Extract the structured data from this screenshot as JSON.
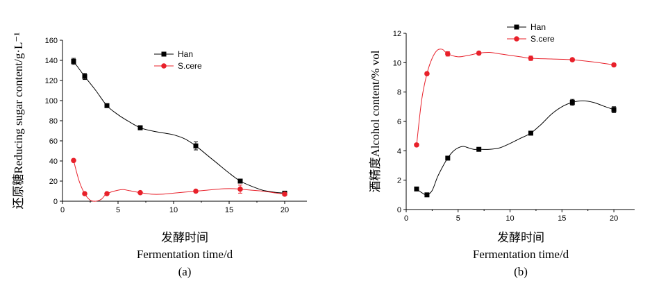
{
  "chart_data": [
    {
      "type": "line",
      "panel_label": "(a)",
      "xlabel_cn": "发酵时间",
      "xlabel": "Fermentation time/d",
      "ylabel_cn": "还原糖",
      "ylabel": "Reducing sugar content/g·L⁻¹",
      "xlim": [
        0,
        22
      ],
      "ylim": [
        0,
        160
      ],
      "xticks": [
        0,
        5,
        10,
        15,
        20
      ],
      "yticks": [
        0,
        20,
        40,
        60,
        80,
        100,
        120,
        140,
        160
      ],
      "legend_position": "top-center",
      "series": [
        {
          "name": "Han",
          "color": "#000000",
          "marker": "square",
          "x": [
            1,
            2,
            4,
            7,
            12,
            16,
            20
          ],
          "y": [
            139,
            124,
            95,
            73,
            55,
            20,
            8
          ],
          "err": [
            3,
            3,
            1,
            2,
            4,
            2,
            1
          ],
          "curve": [
            [
              1,
              139
            ],
            [
              2,
              124
            ],
            [
              3,
              110
            ],
            [
              4,
              95
            ],
            [
              5,
              86
            ],
            [
              6,
              79
            ],
            [
              7,
              73
            ],
            [
              8,
              70
            ],
            [
              9,
              68
            ],
            [
              10,
              66
            ],
            [
              11,
              62
            ],
            [
              12,
              55
            ],
            [
              13,
              46
            ],
            [
              14,
              37
            ],
            [
              15,
              28
            ],
            [
              16,
              20
            ],
            [
              17,
              15
            ],
            [
              18,
              11
            ],
            [
              19,
              9
            ],
            [
              20,
              8
            ]
          ]
        },
        {
          "name": "S.cere",
          "color": "#e8202a",
          "marker": "circle",
          "x": [
            1,
            2,
            4,
            7,
            12,
            16,
            20
          ],
          "y": [
            40.5,
            7.5,
            7.5,
            8.5,
            10,
            12,
            7
          ],
          "err": [
            1,
            1,
            1,
            1,
            1,
            4,
            1
          ],
          "curve": [
            [
              1,
              40.5
            ],
            [
              1.5,
              20
            ],
            [
              2,
              7.5
            ],
            [
              2.5,
              1
            ],
            [
              3,
              0
            ],
            [
              3.5,
              2
            ],
            [
              4,
              7.5
            ],
            [
              5,
              11
            ],
            [
              5.5,
              11.5
            ],
            [
              6,
              10.5
            ],
            [
              7,
              8.5
            ],
            [
              8,
              7
            ],
            [
              9,
              7
            ],
            [
              10,
              8
            ],
            [
              11,
              9
            ],
            [
              12,
              10
            ],
            [
              13,
              11
            ],
            [
              14,
              12
            ],
            [
              15,
              12.5
            ],
            [
              16,
              12
            ],
            [
              17,
              11
            ],
            [
              18,
              10
            ],
            [
              19,
              8.5
            ],
            [
              20,
              7
            ]
          ]
        }
      ]
    },
    {
      "type": "line",
      "panel_label": "(b)",
      "xlabel_cn": "发酵时间",
      "xlabel": "Fermentation time/d",
      "ylabel_cn": "酒精度",
      "ylabel": "Alcohol content/% vol",
      "xlim": [
        0,
        22
      ],
      "ylim": [
        0,
        12
      ],
      "xticks": [
        0,
        5,
        10,
        15,
        20
      ],
      "yticks": [
        0,
        2,
        4,
        6,
        8,
        10,
        12
      ],
      "legend_position": "top-center",
      "series": [
        {
          "name": "Han",
          "color": "#000000",
          "marker": "square",
          "x": [
            1,
            2,
            4,
            7,
            12,
            16,
            20
          ],
          "y": [
            1.4,
            1.0,
            3.5,
            4.1,
            5.2,
            7.3,
            6.8
          ],
          "err": [
            0.1,
            0.1,
            0.1,
            0.1,
            0.1,
            0.2,
            0.2
          ],
          "curve": [
            [
              1,
              1.4
            ],
            [
              1.5,
              1.15
            ],
            [
              2,
              1.0
            ],
            [
              2.5,
              1.3
            ],
            [
              3,
              2.2
            ],
            [
              3.5,
              2.9
            ],
            [
              4,
              3.5
            ],
            [
              4.5,
              3.95
            ],
            [
              5,
              4.2
            ],
            [
              5.5,
              4.3
            ],
            [
              6,
              4.2
            ],
            [
              6.5,
              4.1
            ],
            [
              7,
              4.1
            ],
            [
              8,
              4.1
            ],
            [
              9,
              4.2
            ],
            [
              10,
              4.5
            ],
            [
              11,
              4.85
            ],
            [
              12,
              5.2
            ],
            [
              13,
              5.8
            ],
            [
              14,
              6.5
            ],
            [
              15,
              7.0
            ],
            [
              16,
              7.3
            ],
            [
              17,
              7.4
            ],
            [
              18,
              7.3
            ],
            [
              19,
              7.05
            ],
            [
              20,
              6.8
            ]
          ]
        },
        {
          "name": "S.cere",
          "color": "#e8202a",
          "marker": "circle",
          "x": [
            1,
            2,
            4,
            7,
            12,
            16,
            20
          ],
          "y": [
            4.4,
            9.25,
            10.6,
            10.65,
            10.3,
            10.2,
            9.85
          ],
          "err": [
            0.1,
            0.1,
            0.15,
            0.1,
            0.15,
            0.1,
            0.1
          ],
          "curve": [
            [
              1,
              4.4
            ],
            [
              1.5,
              7.5
            ],
            [
              2,
              9.25
            ],
            [
              2.5,
              10.3
            ],
            [
              3,
              10.85
            ],
            [
              3.5,
              10.9
            ],
            [
              4,
              10.6
            ],
            [
              5,
              10.4
            ],
            [
              6,
              10.5
            ],
            [
              7,
              10.65
            ],
            [
              8,
              10.7
            ],
            [
              9,
              10.6
            ],
            [
              10,
              10.5
            ],
            [
              11,
              10.4
            ],
            [
              12,
              10.3
            ],
            [
              14,
              10.25
            ],
            [
              16,
              10.2
            ],
            [
              18,
              10.05
            ],
            [
              20,
              9.85
            ]
          ]
        }
      ]
    }
  ]
}
